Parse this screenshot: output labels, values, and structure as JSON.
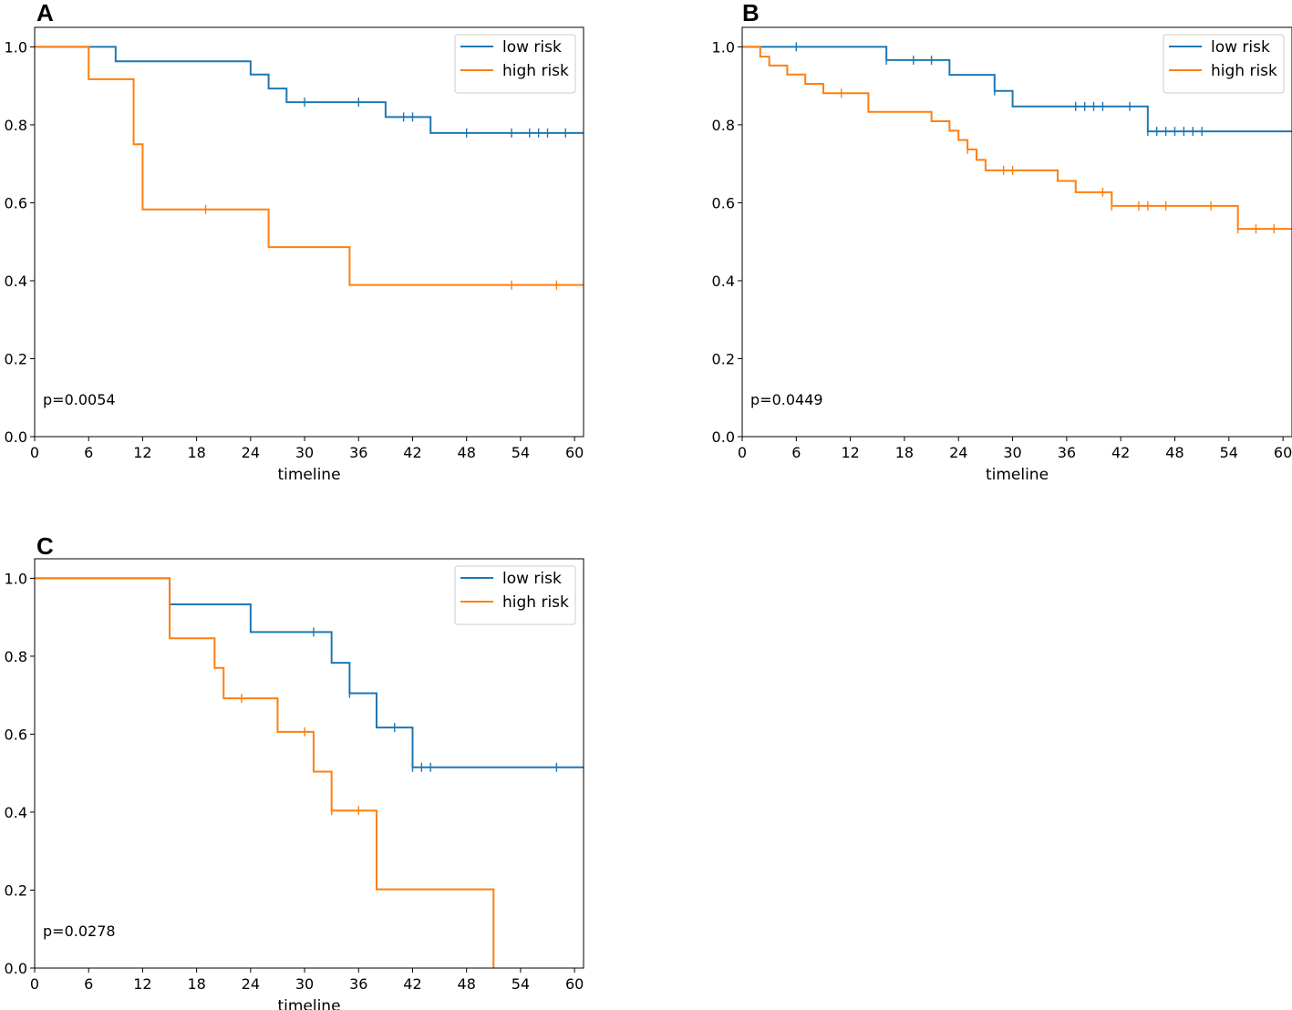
{
  "chart_data": [
    {
      "type": "line",
      "subtype": "kaplan-meier",
      "panel_label": "A",
      "xlabel": "timeline",
      "ylabel": "",
      "xlim": [
        0,
        61
      ],
      "ylim": [
        0,
        1.05
      ],
      "xticks": [
        0,
        6,
        12,
        18,
        24,
        30,
        36,
        42,
        48,
        54,
        60
      ],
      "yticks": [
        "0.0",
        "0.2",
        "0.4",
        "0.6",
        "0.8",
        "1.0"
      ],
      "annotation": "p=0.0054",
      "legend_position": "top-right",
      "series": [
        {
          "name": "low risk",
          "color": "#1f77b4",
          "steps": [
            [
              0,
              1.0
            ],
            [
              9,
              0.963
            ],
            [
              24,
              0.929
            ],
            [
              26,
              0.893
            ],
            [
              28,
              0.858
            ],
            [
              39,
              0.82
            ],
            [
              44,
              0.779
            ],
            [
              61,
              0.779
            ]
          ],
          "censors": [
            [
              30,
              0.858
            ],
            [
              36,
              0.858
            ],
            [
              41,
              0.82
            ],
            [
              42,
              0.82
            ],
            [
              48,
              0.779
            ],
            [
              53,
              0.779
            ],
            [
              55,
              0.779
            ],
            [
              56,
              0.779
            ],
            [
              57,
              0.779
            ],
            [
              59,
              0.779
            ]
          ]
        },
        {
          "name": "high risk",
          "color": "#ff7f0e",
          "steps": [
            [
              0,
              1.0
            ],
            [
              6,
              0.917
            ],
            [
              11,
              0.75
            ],
            [
              12,
              0.583
            ],
            [
              26,
              0.486
            ],
            [
              35,
              0.389
            ],
            [
              61,
              0.389
            ]
          ],
          "censors": [
            [
              19,
              0.583
            ],
            [
              53,
              0.389
            ],
            [
              58,
              0.389
            ]
          ]
        }
      ]
    },
    {
      "type": "line",
      "subtype": "kaplan-meier",
      "panel_label": "B",
      "xlabel": "timeline",
      "ylabel": "",
      "xlim": [
        0,
        61
      ],
      "ylim": [
        0,
        1.05
      ],
      "xticks": [
        0,
        6,
        12,
        18,
        24,
        30,
        36,
        42,
        48,
        54,
        60
      ],
      "yticks": [
        "0.0",
        "0.2",
        "0.4",
        "0.6",
        "0.8",
        "1.0"
      ],
      "annotation": "p=0.0449",
      "legend_position": "top-right",
      "series": [
        {
          "name": "low risk",
          "color": "#1f77b4",
          "steps": [
            [
              0,
              1.0
            ],
            [
              16,
              0.966
            ],
            [
              23,
              0.928
            ],
            [
              28,
              0.887
            ],
            [
              30,
              0.847
            ],
            [
              45,
              0.783
            ],
            [
              61,
              0.783
            ]
          ],
          "censors": [
            [
              6,
              1.0
            ],
            [
              16,
              0.966
            ],
            [
              19,
              0.966
            ],
            [
              21,
              0.966
            ],
            [
              28,
              0.887
            ],
            [
              37,
              0.847
            ],
            [
              38,
              0.847
            ],
            [
              39,
              0.847
            ],
            [
              40,
              0.847
            ],
            [
              43,
              0.847
            ],
            [
              45,
              0.783
            ],
            [
              46,
              0.783
            ],
            [
              47,
              0.783
            ],
            [
              48,
              0.783
            ],
            [
              49,
              0.783
            ],
            [
              50,
              0.783
            ],
            [
              51,
              0.783
            ]
          ]
        },
        {
          "name": "high risk",
          "color": "#ff7f0e",
          "steps": [
            [
              0,
              1.0
            ],
            [
              2,
              0.975
            ],
            [
              3,
              0.952
            ],
            [
              5,
              0.929
            ],
            [
              7,
              0.905
            ],
            [
              9,
              0.881
            ],
            [
              14,
              0.833
            ],
            [
              21,
              0.809
            ],
            [
              23,
              0.785
            ],
            [
              24,
              0.761
            ],
            [
              25,
              0.737
            ],
            [
              26,
              0.71
            ],
            [
              27,
              0.683
            ],
            [
              35,
              0.656
            ],
            [
              37,
              0.627
            ],
            [
              41,
              0.592
            ],
            [
              55,
              0.533
            ],
            [
              61,
              0.533
            ]
          ],
          "censors": [
            [
              11,
              0.881
            ],
            [
              25,
              0.737
            ],
            [
              29,
              0.683
            ],
            [
              30,
              0.683
            ],
            [
              40,
              0.627
            ],
            [
              41,
              0.592
            ],
            [
              44,
              0.592
            ],
            [
              45,
              0.592
            ],
            [
              47,
              0.592
            ],
            [
              52,
              0.592
            ],
            [
              55,
              0.533
            ],
            [
              57,
              0.533
            ],
            [
              59,
              0.533
            ]
          ]
        }
      ]
    },
    {
      "type": "line",
      "subtype": "kaplan-meier",
      "panel_label": "C",
      "xlabel": "timeline",
      "ylabel": "",
      "xlim": [
        0,
        61
      ],
      "ylim": [
        0,
        1.05
      ],
      "xticks": [
        0,
        6,
        12,
        18,
        24,
        30,
        36,
        42,
        48,
        54,
        60
      ],
      "yticks": [
        "0.0",
        "0.2",
        "0.4",
        "0.6",
        "0.8",
        "1.0"
      ],
      "annotation": "p=0.0278",
      "legend_position": "top-right",
      "series": [
        {
          "name": "low risk",
          "color": "#1f77b4",
          "steps": [
            [
              0,
              1.0
            ],
            [
              15,
              0.933
            ],
            [
              24,
              0.862
            ],
            [
              33,
              0.783
            ],
            [
              35,
              0.705
            ],
            [
              38,
              0.617
            ],
            [
              42,
              0.515
            ],
            [
              61,
              0.515
            ]
          ],
          "censors": [
            [
              31,
              0.862
            ],
            [
              35,
              0.705
            ],
            [
              40,
              0.617
            ],
            [
              42,
              0.515
            ],
            [
              43,
              0.515
            ],
            [
              44,
              0.515
            ],
            [
              58,
              0.515
            ]
          ]
        },
        {
          "name": "high risk",
          "color": "#ff7f0e",
          "steps": [
            [
              0,
              1.0
            ],
            [
              15,
              0.846
            ],
            [
              20,
              0.77
            ],
            [
              21,
              0.692
            ],
            [
              27,
              0.606
            ],
            [
              31,
              0.504
            ],
            [
              33,
              0.404
            ],
            [
              38,
              0.202
            ],
            [
              51,
              0.0
            ]
          ],
          "censors": [
            [
              23,
              0.692
            ],
            [
              30,
              0.606
            ],
            [
              33,
              0.404
            ],
            [
              36,
              0.404
            ]
          ]
        }
      ]
    }
  ]
}
